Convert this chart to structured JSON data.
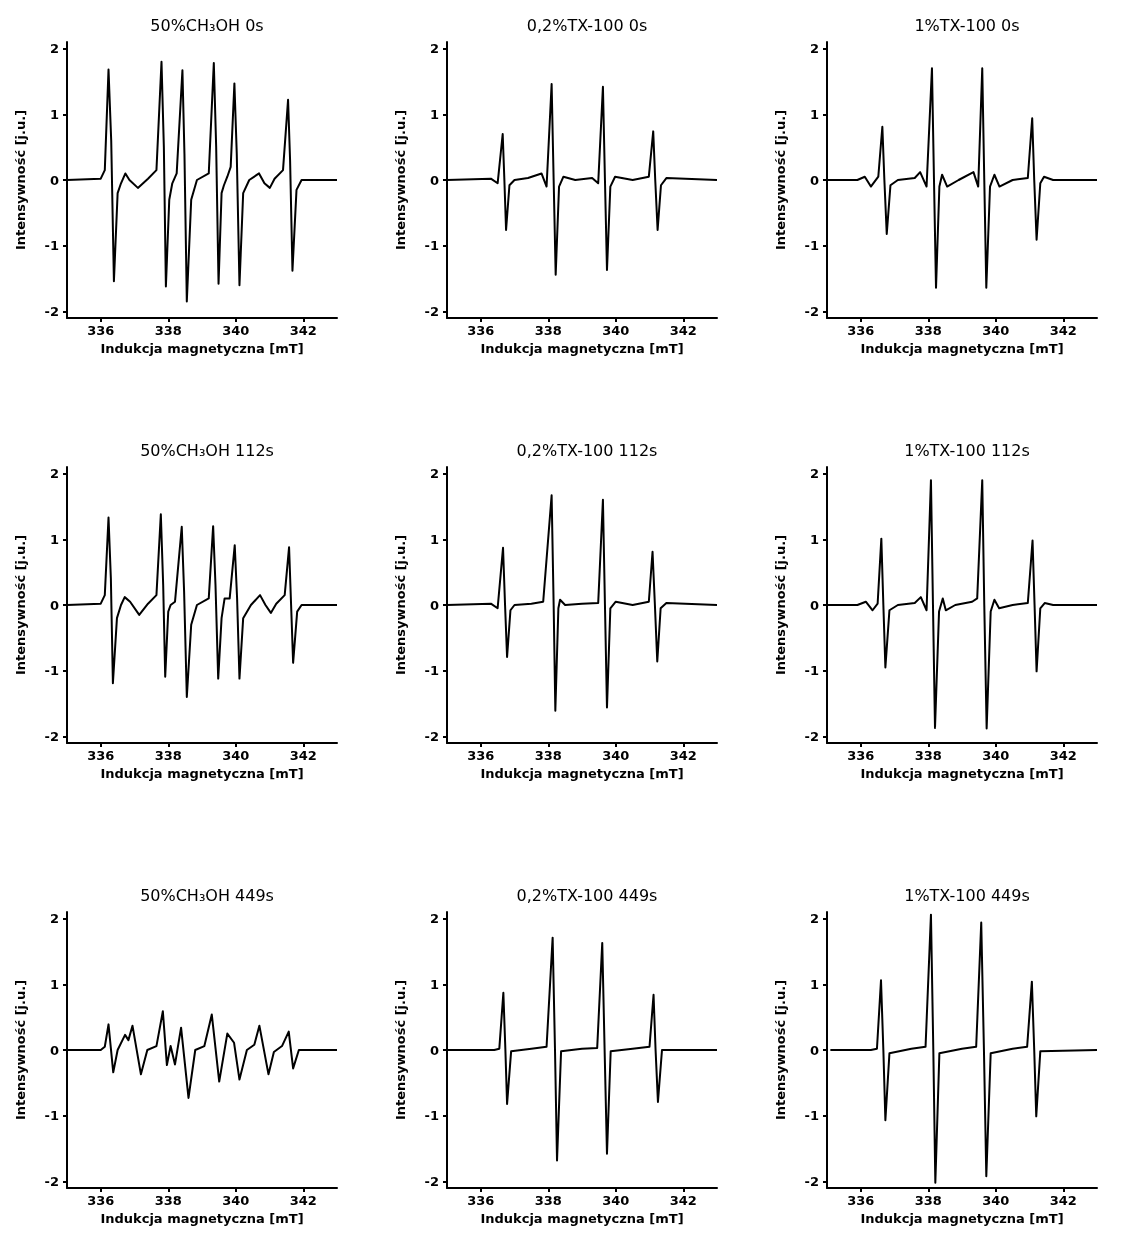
{
  "chart_data": [
    {
      "type": "line",
      "title": "50%CH₃OH 0s",
      "xlabel": "Indukcja magnetyczna [mT]",
      "ylabel": "Intensywność [j.u.]",
      "xlim": [
        335,
        343
      ],
      "ylim": [
        -2.1,
        2.1
      ],
      "xticks": [
        336,
        338,
        340,
        342
      ],
      "yticks": [
        -2,
        -1,
        0,
        1,
        2
      ],
      "grid": false,
      "series": [
        {
          "color": "#000000",
          "x": [
            335,
            336.0,
            336.12,
            336.23,
            336.31,
            336.39,
            336.5,
            336.6,
            336.73,
            336.85,
            337.1,
            337.4,
            337.65,
            337.8,
            337.87,
            337.93,
            338.03,
            338.12,
            338.25,
            338.42,
            338.48,
            338.55,
            338.68,
            338.85,
            339.2,
            339.35,
            339.42,
            339.49,
            339.58,
            339.65,
            339.75,
            339.85,
            339.96,
            340.03,
            340.11,
            340.22,
            340.4,
            340.69,
            340.85,
            341.01,
            341.15,
            341.4,
            341.55,
            341.61,
            341.68,
            341.8,
            341.95,
            343
          ],
          "values": [
            0,
            0.02,
            0.15,
            1.68,
            0.6,
            -1.54,
            -0.2,
            -0.05,
            0.1,
            0,
            -0.12,
            0.02,
            0.15,
            1.8,
            0.5,
            -1.62,
            -0.3,
            -0.05,
            0.1,
            1.67,
            0.4,
            -1.85,
            -0.3,
            0,
            0.1,
            1.78,
            0.5,
            -1.58,
            -0.2,
            -0.08,
            0.05,
            0.2,
            1.47,
            0.4,
            -1.6,
            -0.2,
            0,
            0.1,
            -0.05,
            -0.12,
            0.02,
            0.15,
            1.22,
            0.3,
            -1.38,
            -0.15,
            0,
            0
          ]
        }
      ]
    },
    {
      "type": "line",
      "title": "0,2%TX-100 0s",
      "xlabel": "Indukcja magnetyczna [mT]",
      "ylabel": "Intensywność [j.u.]",
      "xlim": [
        335,
        343
      ],
      "ylim": [
        -2.1,
        2.1
      ],
      "xticks": [
        336,
        338,
        340,
        342
      ],
      "yticks": [
        -2,
        -1,
        0,
        1,
        2
      ],
      "grid": false,
      "series": [
        {
          "color": "#000000",
          "x": [
            335,
            336.3,
            336.5,
            336.65,
            336.7,
            336.75,
            336.85,
            337.0,
            337.4,
            337.8,
            337.95,
            338.1,
            338.16,
            338.22,
            338.32,
            338.45,
            338.8,
            339.3,
            339.48,
            339.62,
            339.68,
            339.74,
            339.84,
            339.98,
            340.5,
            340.98,
            341.11,
            341.17,
            341.24,
            341.34,
            341.5,
            343
          ],
          "values": [
            0,
            0.02,
            -0.05,
            0.7,
            0,
            -0.76,
            -0.08,
            0,
            0.03,
            0.1,
            -0.1,
            1.46,
            0,
            -1.44,
            -0.1,
            0.05,
            0,
            0.03,
            -0.05,
            1.42,
            0,
            -1.37,
            -0.1,
            0.05,
            0,
            0.05,
            0.74,
            0,
            -0.76,
            -0.08,
            0.03,
            0
          ]
        }
      ]
    },
    {
      "type": "line",
      "title": "1%TX-100 0s",
      "xlabel": "Indukcja magnetyczna [mT]",
      "ylabel": "Intensywność [j.u.]",
      "xlim": [
        335,
        343
      ],
      "ylim": [
        -2.1,
        2.1
      ],
      "xticks": [
        336,
        338,
        340,
        342
      ],
      "yticks": [
        -2,
        -1,
        0,
        1,
        2
      ],
      "grid": false,
      "series": [
        {
          "color": "#000000",
          "x": [
            335,
            335.9,
            336.12,
            336.3,
            336.52,
            336.64,
            336.7,
            336.77,
            336.88,
            337.1,
            337.6,
            337.76,
            337.95,
            338.11,
            338.17,
            338.23,
            338.33,
            338.41,
            338.56,
            338.9,
            339.34,
            339.48,
            339.6,
            339.66,
            339.72,
            339.83,
            339.96,
            340.11,
            340.5,
            340.95,
            341.08,
            341.14,
            341.21,
            341.32,
            341.43,
            341.7,
            343
          ],
          "values": [
            0,
            0,
            0.05,
            -0.1,
            0.05,
            0.81,
            0,
            -0.82,
            -0.08,
            0,
            0.03,
            0.12,
            -0.1,
            1.7,
            0,
            -1.64,
            -0.1,
            0.08,
            -0.1,
            0,
            0.12,
            -0.1,
            1.7,
            0,
            -1.64,
            -0.1,
            0.08,
            -0.1,
            0,
            0.03,
            0.94,
            0,
            -0.91,
            -0.05,
            0.05,
            0,
            0
          ]
        }
      ]
    },
    {
      "type": "line",
      "title": "50%CH₃OH 112s",
      "xlabel": "Indukcja magnetyczna [mT]",
      "ylabel": "Intensywność [j.u.]",
      "xlim": [
        335,
        343
      ],
      "ylim": [
        -2.1,
        2.1
      ],
      "xticks": [
        336,
        338,
        340,
        342
      ],
      "yticks": [
        -2,
        -1,
        0,
        1,
        2
      ],
      "grid": false,
      "series": [
        {
          "color": "#000000",
          "x": [
            335,
            336.0,
            336.12,
            336.23,
            336.3,
            336.36,
            336.48,
            336.6,
            336.71,
            336.87,
            337.14,
            337.4,
            337.65,
            337.78,
            337.85,
            337.91,
            338.0,
            338.07,
            338.2,
            338.4,
            338.47,
            338.55,
            338.68,
            338.85,
            339.2,
            339.33,
            339.4,
            339.48,
            339.58,
            339.67,
            339.82,
            339.97,
            340.04,
            340.11,
            340.22,
            340.45,
            340.72,
            340.88,
            341.04,
            341.2,
            341.45,
            341.58,
            341.64,
            341.7,
            341.82,
            341.95,
            343
          ],
          "values": [
            0,
            0.02,
            0.15,
            1.33,
            0.4,
            -1.19,
            -0.2,
            0,
            0.12,
            0.05,
            -0.15,
            0.02,
            0.15,
            1.38,
            0.3,
            -1.09,
            -0.1,
            0,
            0.05,
            1.19,
            0.2,
            -1.4,
            -0.3,
            0,
            0.1,
            1.2,
            0.3,
            -1.12,
            -0.2,
            0.1,
            0.1,
            0.91,
            0.1,
            -1.12,
            -0.2,
            0,
            0.15,
            0,
            -0.12,
            0.02,
            0.15,
            0.88,
            0,
            -0.88,
            -0.1,
            0,
            0
          ]
        }
      ]
    },
    {
      "type": "line",
      "title": "0,2%TX-100 112s",
      "xlabel": "Indukcja magnetyczna [mT]",
      "ylabel": "Intensywność [j.u.]",
      "xlim": [
        335,
        343
      ],
      "ylim": [
        -2.1,
        2.1
      ],
      "xticks": [
        336,
        338,
        340,
        342
      ],
      "yticks": [
        -2,
        -1,
        0,
        1,
        2
      ],
      "grid": false,
      "series": [
        {
          "color": "#000000",
          "x": [
            335,
            336.3,
            336.5,
            336.66,
            336.72,
            336.78,
            336.88,
            337.0,
            337.5,
            337.85,
            338.1,
            338.16,
            338.21,
            338.3,
            338.35,
            338.5,
            339.0,
            339.48,
            339.62,
            339.68,
            339.74,
            339.84,
            340.0,
            340.5,
            340.98,
            341.09,
            341.16,
            341.23,
            341.33,
            341.5,
            343
          ],
          "values": [
            0,
            0.02,
            -0.05,
            0.87,
            0,
            -0.79,
            -0.08,
            0,
            0.02,
            0.05,
            1.67,
            0,
            -1.61,
            -0.05,
            0.08,
            0,
            0.02,
            0.03,
            1.6,
            0,
            -1.56,
            -0.05,
            0.05,
            0,
            0.05,
            0.81,
            0,
            -0.86,
            -0.05,
            0.03,
            0
          ]
        }
      ]
    },
    {
      "type": "line",
      "title": "1%TX-100 112s",
      "xlabel": "Indukcja magnetyczna [mT]",
      "ylabel": "Intensywność [j.u.]",
      "xlim": [
        335,
        343
      ],
      "ylim": [
        -2.1,
        2.1
      ],
      "xticks": [
        336,
        338,
        340,
        342
      ],
      "yticks": [
        -2,
        -1,
        0,
        1,
        2
      ],
      "grid": false,
      "series": [
        {
          "color": "#000000",
          "x": [
            335,
            335.9,
            336.15,
            336.35,
            336.5,
            336.61,
            336.67,
            336.73,
            336.85,
            337.1,
            337.6,
            337.78,
            337.95,
            338.08,
            338.14,
            338.2,
            338.32,
            338.43,
            338.52,
            338.8,
            339.3,
            339.45,
            339.6,
            339.66,
            339.73,
            339.85,
            339.96,
            340.1,
            340.5,
            340.95,
            341.09,
            341.15,
            341.21,
            341.32,
            341.45,
            341.7,
            343
          ],
          "values": [
            0,
            0,
            0.05,
            -0.08,
            0.02,
            1.01,
            0,
            -0.95,
            -0.08,
            0,
            0.03,
            0.12,
            -0.08,
            1.9,
            0,
            -1.87,
            -0.1,
            0.1,
            -0.08,
            0,
            0.05,
            0.1,
            1.9,
            0,
            -1.88,
            -0.1,
            0.08,
            -0.05,
            0,
            0.03,
            0.98,
            0,
            -1.01,
            -0.05,
            0.03,
            0,
            0
          ]
        }
      ]
    },
    {
      "type": "line",
      "title": "50%CH₃OH 449s",
      "xlabel": "Indukcja magnetyczna [mT]",
      "ylabel": "Intensywność [j.u.]",
      "xlim": [
        335,
        343
      ],
      "ylim": [
        -2.1,
        2.1
      ],
      "xticks": [
        336,
        338,
        340,
        342
      ],
      "yticks": [
        -2,
        -1,
        0,
        1,
        2
      ],
      "grid": false,
      "series": [
        {
          "color": "#000000",
          "x": [
            335,
            336.0,
            336.12,
            336.23,
            336.37,
            336.5,
            336.72,
            336.82,
            336.94,
            337.19,
            337.38,
            337.65,
            337.84,
            337.96,
            338.07,
            338.2,
            338.38,
            338.6,
            338.8,
            339.07,
            339.29,
            339.51,
            339.75,
            339.95,
            340.11,
            340.33,
            340.55,
            340.7,
            340.97,
            341.13,
            341.37,
            341.57,
            341.7,
            341.87,
            343
          ],
          "values": [
            0,
            0,
            0.05,
            0.39,
            -0.34,
            0,
            0.23,
            0.15,
            0.37,
            -0.37,
            0,
            0.06,
            0.59,
            -0.23,
            0.06,
            -0.22,
            0.34,
            -0.73,
            0,
            0.06,
            0.54,
            -0.48,
            0.25,
            0.11,
            -0.45,
            0,
            0.08,
            0.37,
            -0.37,
            -0.03,
            0.06,
            0.28,
            -0.28,
            0,
            0
          ]
        }
      ]
    },
    {
      "type": "line",
      "title": "0,2%TX-100 449s",
      "xlabel": "Indukcja magnetyczna [mT]",
      "ylabel": "Intensywność [j.u.]",
      "xlim": [
        335,
        343
      ],
      "ylim": [
        -2.1,
        2.1
      ],
      "xticks": [
        336,
        338,
        340,
        342
      ],
      "yticks": [
        -2,
        -1,
        0,
        1,
        2
      ],
      "grid": false,
      "series": [
        {
          "color": "#000000",
          "x": [
            335,
            336.4,
            336.55,
            336.67,
            336.73,
            336.78,
            336.9,
            337.5,
            337.95,
            338.13,
            338.2,
            338.26,
            338.38,
            339.0,
            339.45,
            339.6,
            339.67,
            339.74,
            339.85,
            340.5,
            341.0,
            341.12,
            341.18,
            341.25,
            341.37,
            343
          ],
          "values": [
            0,
            0,
            0.02,
            0.87,
            0,
            -0.82,
            -0.02,
            0.02,
            0.05,
            1.71,
            0,
            -1.68,
            -0.02,
            0.02,
            0.03,
            1.63,
            0,
            -1.58,
            -0.02,
            0.02,
            0.05,
            0.84,
            0,
            -0.79,
            0,
            0
          ]
        }
      ]
    },
    {
      "type": "line",
      "title": "1%TX-100 449s",
      "xlabel": "Indukcja magnetyczna [mT]",
      "ylabel": "Intensywność [j.u.]",
      "xlim": [
        335,
        343
      ],
      "ylim": [
        -2.1,
        2.1
      ],
      "xticks": [
        336,
        338,
        340,
        342
      ],
      "yticks": [
        -2,
        -1,
        0,
        1,
        2
      ],
      "grid": false,
      "series": [
        {
          "color": "#000000",
          "x": [
            335.1,
            336.3,
            336.48,
            336.6,
            336.67,
            336.73,
            336.85,
            337.5,
            337.92,
            338.08,
            338.15,
            338.21,
            338.33,
            339.0,
            339.42,
            339.57,
            339.65,
            339.72,
            339.85,
            340.5,
            340.93,
            341.07,
            341.14,
            341.2,
            341.32,
            343
          ],
          "values": [
            0,
            0,
            0.02,
            1.06,
            0,
            -1.07,
            -0.05,
            0.02,
            0.05,
            2.06,
            0,
            -2.02,
            -0.05,
            0.02,
            0.05,
            1.94,
            0,
            -1.92,
            -0.05,
            0.02,
            0.05,
            1.04,
            0,
            -1.01,
            -0.02,
            0
          ]
        }
      ]
    }
  ]
}
